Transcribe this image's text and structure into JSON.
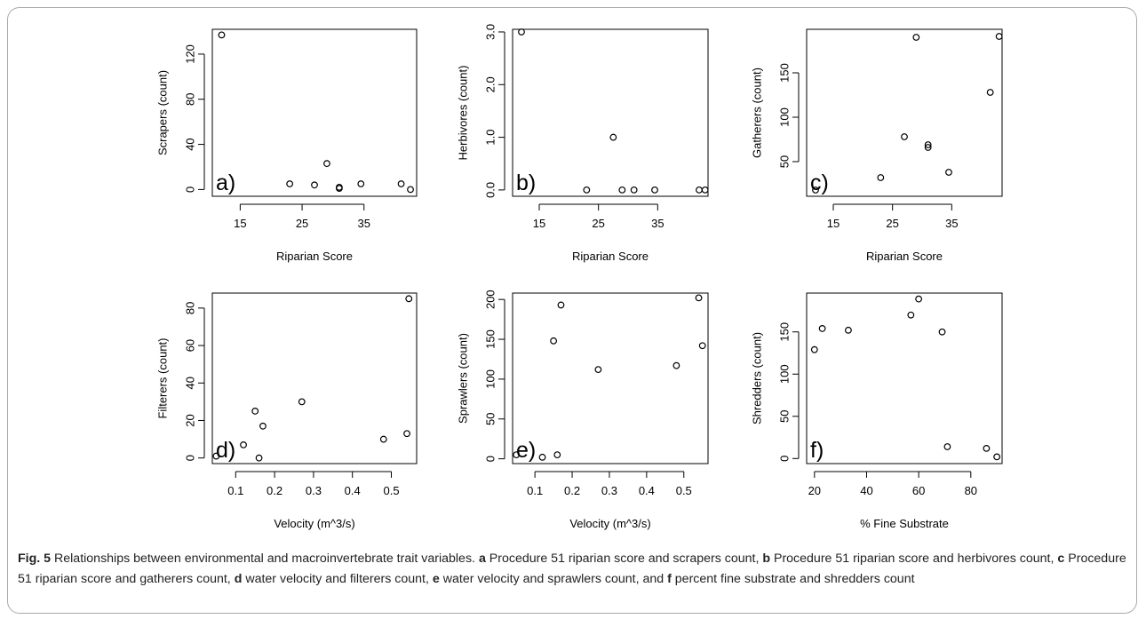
{
  "caption": {
    "fig_label": "Fig. 5",
    "title": "Relationships between environmental and macroinvertebrate trait variables.",
    "parts": [
      {
        "letter": "a",
        "text": "Procedure 51 riparian score and scrapers count,"
      },
      {
        "letter": "b",
        "text": "Procedure 51 riparian score and herbivores count,"
      },
      {
        "letter": "c",
        "text": "Procedure 51 riparian score and gatherers count,"
      },
      {
        "letter": "d",
        "text": "water velocity and filterers count,"
      },
      {
        "letter": "e",
        "text": "water velocity and sprawlers count, and"
      },
      {
        "letter": "f",
        "text": "percent fine substrate and shredders count"
      }
    ]
  },
  "chart_data": [
    {
      "type": "scatter",
      "panel_label": "a)",
      "xlabel": "Riparian Score",
      "ylabel": "Scrapers (count)",
      "xlim": [
        10.5,
        43.5
      ],
      "ylim": [
        -6,
        142
      ],
      "xticks": [
        15,
        25,
        35
      ],
      "xtick_labels": [
        "15",
        "25",
        "35"
      ],
      "yticks": [
        0,
        40,
        80,
        120
      ],
      "ytick_labels": [
        "0",
        "40",
        "80",
        "120"
      ],
      "points": [
        [
          12,
          137
        ],
        [
          23,
          5
        ],
        [
          27,
          4
        ],
        [
          29,
          23
        ],
        [
          31,
          2
        ],
        [
          31,
          1
        ],
        [
          34.5,
          5
        ],
        [
          41,
          5
        ],
        [
          42.5,
          0
        ]
      ]
    },
    {
      "type": "scatter",
      "panel_label": "b)",
      "xlabel": "Riparian Score",
      "ylabel": "Herbivores (count)",
      "xlim": [
        10.5,
        43.5
      ],
      "ylim": [
        -0.12,
        3.05
      ],
      "xticks": [
        15,
        25,
        35
      ],
      "xtick_labels": [
        "15",
        "25",
        "35"
      ],
      "yticks": [
        0,
        1,
        2,
        3
      ],
      "ytick_labels": [
        "0.0",
        "1.0",
        "2.0",
        "3.0"
      ],
      "points": [
        [
          12,
          3
        ],
        [
          23,
          0
        ],
        [
          27.5,
          1
        ],
        [
          29,
          0
        ],
        [
          31,
          0
        ],
        [
          34.5,
          0
        ],
        [
          42,
          0
        ],
        [
          43,
          0
        ]
      ]
    },
    {
      "type": "scatter",
      "panel_label": "c)",
      "xlabel": "Riparian Score",
      "ylabel": "Gatherers (count)",
      "xlim": [
        10.5,
        43.5
      ],
      "ylim": [
        11,
        199
      ],
      "xticks": [
        15,
        25,
        35
      ],
      "xtick_labels": [
        "15",
        "25",
        "35"
      ],
      "yticks": [
        50,
        100,
        150
      ],
      "ytick_labels": [
        "50",
        "100",
        "150"
      ],
      "points": [
        [
          12,
          18
        ],
        [
          23,
          32
        ],
        [
          27,
          78
        ],
        [
          29,
          190
        ],
        [
          31,
          69
        ],
        [
          31,
          66
        ],
        [
          34.5,
          38
        ],
        [
          41.5,
          128
        ],
        [
          43,
          191
        ]
      ]
    },
    {
      "type": "scatter",
      "panel_label": "d)",
      "xlabel": "Velocity (m^3/s)",
      "ylabel": "Filterers (count)",
      "xlim": [
        0.04,
        0.565
      ],
      "ylim": [
        -3,
        88
      ],
      "xticks": [
        0.1,
        0.2,
        0.3,
        0.4,
        0.5
      ],
      "xtick_labels": [
        "0.1",
        "0.2",
        "0.3",
        "0.4",
        "0.5"
      ],
      "yticks": [
        0,
        20,
        40,
        60,
        80
      ],
      "ytick_labels": [
        "0",
        "20",
        "40",
        "60",
        "80"
      ],
      "points": [
        [
          0.05,
          1
        ],
        [
          0.12,
          7
        ],
        [
          0.15,
          25
        ],
        [
          0.16,
          0
        ],
        [
          0.17,
          17
        ],
        [
          0.27,
          30
        ],
        [
          0.48,
          10
        ],
        [
          0.54,
          13
        ],
        [
          0.545,
          85
        ]
      ]
    },
    {
      "type": "scatter",
      "panel_label": "e)",
      "xlabel": "Velocity (m^3/s)",
      "ylabel": "Sprawlers (count)",
      "xlim": [
        0.04,
        0.565
      ],
      "ylim": [
        -6,
        208
      ],
      "xticks": [
        0.1,
        0.2,
        0.3,
        0.4,
        0.5
      ],
      "xtick_labels": [
        "0.1",
        "0.2",
        "0.3",
        "0.4",
        "0.5"
      ],
      "yticks": [
        0,
        50,
        100,
        150,
        200
      ],
      "ytick_labels": [
        "0",
        "50",
        "100",
        "150",
        "200"
      ],
      "points": [
        [
          0.05,
          5
        ],
        [
          0.12,
          2
        ],
        [
          0.15,
          148
        ],
        [
          0.16,
          5
        ],
        [
          0.17,
          193
        ],
        [
          0.27,
          112
        ],
        [
          0.48,
          117
        ],
        [
          0.54,
          202
        ],
        [
          0.55,
          142
        ]
      ]
    },
    {
      "type": "scatter",
      "panel_label": "f)",
      "xlabel": "% Fine Substrate",
      "ylabel": "Shredders (count)",
      "xlim": [
        17,
        92
      ],
      "ylim": [
        -6,
        196
      ],
      "xticks": [
        20,
        40,
        60,
        80
      ],
      "xtick_labels": [
        "20",
        "40",
        "60",
        "80"
      ],
      "yticks": [
        0,
        50,
        100,
        150
      ],
      "ytick_labels": [
        "0",
        "50",
        "100",
        "150"
      ],
      "points": [
        [
          20,
          129
        ],
        [
          23,
          154
        ],
        [
          33,
          152
        ],
        [
          57,
          170
        ],
        [
          60,
          189
        ],
        [
          69,
          150
        ],
        [
          71,
          14
        ],
        [
          86,
          12
        ],
        [
          90,
          2
        ]
      ]
    }
  ]
}
